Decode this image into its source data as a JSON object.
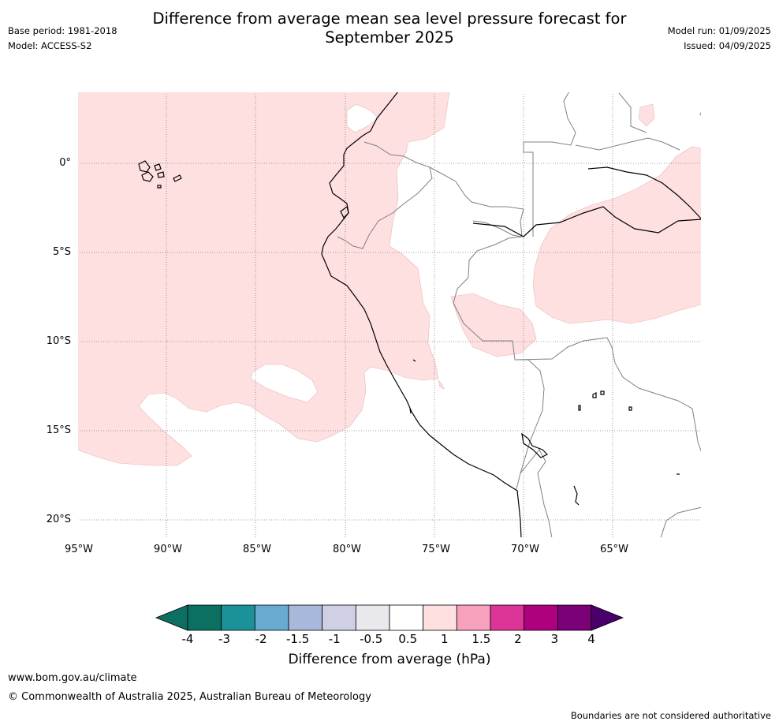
{
  "title_line1": "Difference from average mean sea level pressure forecast for",
  "title_line2": "September 2025",
  "base_period": "Base period: 1981-2018",
  "model": "Model: ACCESS-S2",
  "model_run": "Model run: 01/09/2025",
  "issued": "Issued: 04/09/2025",
  "lat_labels": [
    "0°",
    "5°S",
    "10°S",
    "15°S",
    "20°S"
  ],
  "lon_labels": [
    "95°W",
    "90°W",
    "85°W",
    "80°W",
    "75°W",
    "70°W",
    "65°W"
  ],
  "colorbar": {
    "ticks": [
      "-4",
      "-3",
      "-2",
      "-1.5",
      "-1",
      "-0.5",
      "0.5",
      "1",
      "1.5",
      "2",
      "3",
      "4"
    ],
    "colors": [
      "#0b6f62",
      "#1b9199",
      "#69aad1",
      "#a8b8db",
      "#cfd0e6",
      "#e9e8ec",
      "#ffffff",
      "#fde0df",
      "#f7a1bd",
      "#dd3497",
      "#ae017e",
      "#7a0177"
    ],
    "under_color": "#0b6f62",
    "over_color": "#49006a",
    "label": "Difference from average (hPa)"
  },
  "map": {
    "anomaly_fill_color": "#fde0df",
    "coast_color": "#000000",
    "border_color": "#808080",
    "grid": true
  },
  "footer_url": "www.bom.gov.au/climate",
  "copyright": "© Commonwealth of Australia 2025, Australian Bureau of Meteorology",
  "disclaimer": "Boundaries are not considered authoritative"
}
